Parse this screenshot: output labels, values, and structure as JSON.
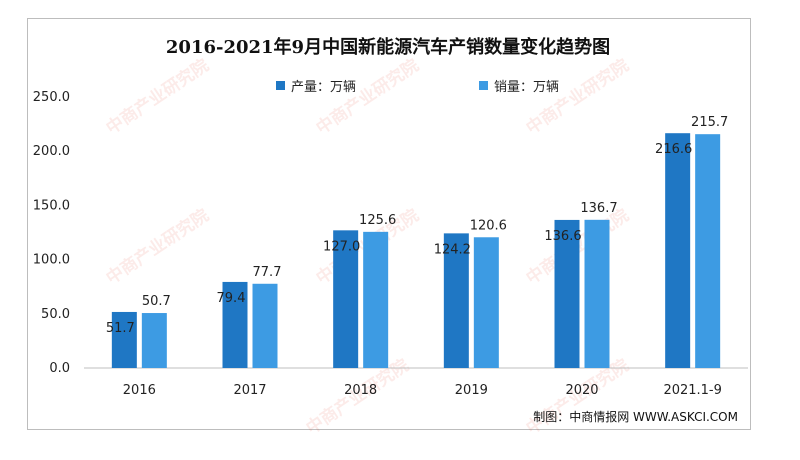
{
  "chart_data": {
    "type": "bar",
    "title": "2016-2021年9月中国新能源汽车产销数量变化趋势图",
    "categories": [
      "2016",
      "2017",
      "2018",
      "2019",
      "2020",
      "2021.1-9"
    ],
    "series": [
      {
        "name": "产量：万辆",
        "color": "#1f77c4",
        "values": [
          51.7,
          79.4,
          127.0,
          124.2,
          136.6,
          216.6
        ],
        "labels": [
          "51.7",
          "79.4",
          "127.0",
          "124.2",
          "136.6",
          "216.6"
        ]
      },
      {
        "name": "销量：万辆",
        "color": "#3d9be3",
        "values": [
          50.7,
          77.7,
          125.6,
          120.6,
          136.7,
          215.7
        ],
        "labels": [
          "50.7",
          "77.7",
          "125.6",
          "120.6",
          "136.7",
          "215.7"
        ]
      }
    ],
    "ylim": [
      0,
      250
    ],
    "yticks": [
      0,
      50,
      100,
      150,
      200,
      250
    ],
    "ytick_labels": [
      "0.0",
      "50.0",
      "100.0",
      "150.0",
      "200.0",
      "250.0"
    ],
    "grid": false,
    "legend": "top-center",
    "source": "制图：中商情报网 WWW.ASKCI.COM"
  },
  "watermark_text": "中商产业研究院"
}
